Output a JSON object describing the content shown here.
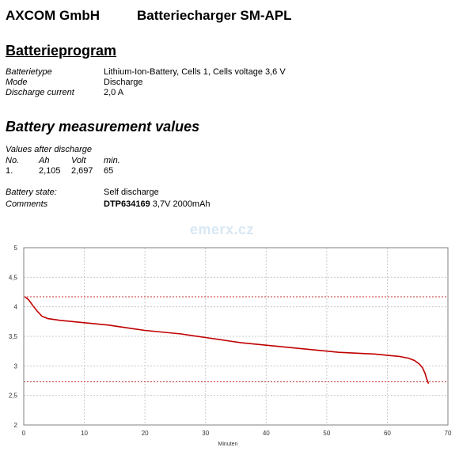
{
  "header": {
    "company": "AXCOM GmbH",
    "product": "Batteriecharger SM-APL"
  },
  "program": {
    "heading": "Batterieprogram",
    "fields": [
      {
        "label": "Batterietype",
        "value": "Lithium-Ion-Battery, Cells 1, Cells voltage 3,6 V"
      },
      {
        "label": "Mode",
        "value": "Discharge"
      },
      {
        "label": "Discharge current",
        "value": "2,0 A"
      }
    ]
  },
  "measurement": {
    "heading": "Battery measurement values",
    "subheading": "Values after discharge",
    "columns": [
      "No.",
      "Ah",
      "Volt",
      "min."
    ],
    "rows": [
      [
        "1.",
        "2,105",
        "2,697",
        "65"
      ]
    ],
    "state_label": "Battery state:",
    "state_value": "Self discharge",
    "comments_label": "Comments",
    "comments_model": "DTP634169",
    "comments_rest": " 3,7V 2000mAh"
  },
  "watermark": "emerx.cz",
  "chart_data": {
    "type": "line",
    "title": "",
    "xlabel": "Minuten",
    "ylabel": "",
    "xlim": [
      0,
      70
    ],
    "ylim": [
      2,
      5
    ],
    "x_ticks": [
      0,
      10,
      20,
      30,
      40,
      50,
      60,
      70
    ],
    "y_ticks": [
      2,
      2.5,
      3,
      3.5,
      4,
      4.5,
      5
    ],
    "grid": true,
    "legend": "none",
    "reference_lines": [
      4.17,
      2.73
    ],
    "series": [
      {
        "color": "#c00000",
        "points": [
          [
            0.2,
            4.17
          ],
          [
            0.8,
            4.12
          ],
          [
            1.5,
            4.02
          ],
          [
            2.2,
            3.93
          ],
          [
            3,
            3.84
          ],
          [
            4,
            3.8
          ],
          [
            6,
            3.77
          ],
          [
            8,
            3.75
          ],
          [
            10,
            3.73
          ],
          [
            12,
            3.71
          ],
          [
            14,
            3.69
          ],
          [
            16,
            3.66
          ],
          [
            18,
            3.63
          ],
          [
            20,
            3.6
          ],
          [
            22,
            3.58
          ],
          [
            24,
            3.56
          ],
          [
            26,
            3.54
          ],
          [
            28,
            3.51
          ],
          [
            30,
            3.48
          ],
          [
            32,
            3.45
          ],
          [
            34,
            3.42
          ],
          [
            36,
            3.39
          ],
          [
            38,
            3.37
          ],
          [
            40,
            3.35
          ],
          [
            42,
            3.33
          ],
          [
            44,
            3.31
          ],
          [
            46,
            3.29
          ],
          [
            48,
            3.27
          ],
          [
            50,
            3.25
          ],
          [
            52,
            3.23
          ],
          [
            54,
            3.22
          ],
          [
            56,
            3.21
          ],
          [
            58,
            3.2
          ],
          [
            60,
            3.18
          ],
          [
            62,
            3.16
          ],
          [
            63.5,
            3.13
          ],
          [
            64.5,
            3.09
          ],
          [
            65.3,
            3.03
          ],
          [
            65.8,
            2.97
          ],
          [
            66.2,
            2.88
          ],
          [
            66.5,
            2.78
          ],
          [
            66.8,
            2.7
          ]
        ]
      }
    ]
  }
}
